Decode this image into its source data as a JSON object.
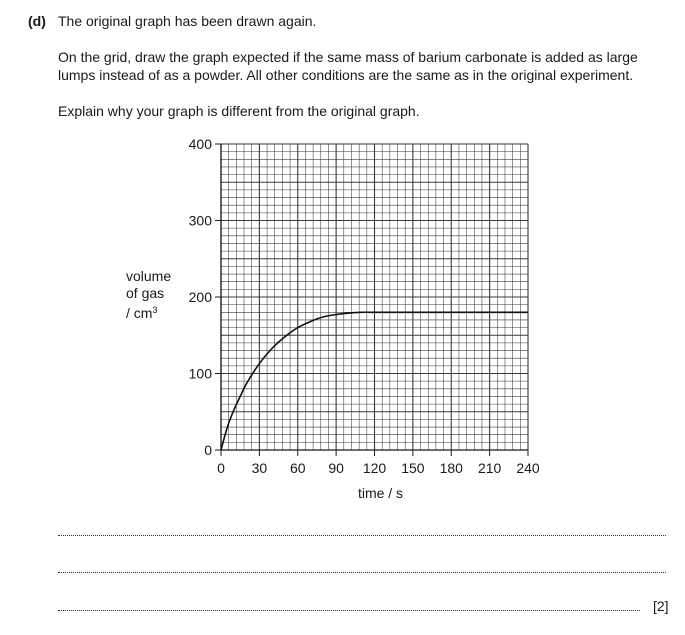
{
  "question": {
    "label": "(d)",
    "intro": "The original graph has been drawn again.",
    "instruction": "On the grid, draw the graph expected if the same mass of barium carbonate is added as large lumps instead of as a powder. All other conditions are the same as in the original experiment.",
    "explain": "Explain why your graph is different from the original graph.",
    "marks": "[2]"
  },
  "chart_data": {
    "type": "line",
    "xlabel": "time / s",
    "ylabel_lines": [
      "volume",
      "of gas",
      "/ cm"
    ],
    "ylabel_superscript": "3",
    "xlim": [
      0,
      240
    ],
    "ylim": [
      0,
      400
    ],
    "x_ticks": [
      0,
      30,
      60,
      90,
      120,
      150,
      180,
      210,
      240
    ],
    "y_ticks": [
      0,
      100,
      200,
      300,
      400
    ],
    "grid": true,
    "minor_grid_step_x": 6,
    "minor_grid_step_y": 10,
    "series": [
      {
        "x": [
          0,
          5,
          10,
          15,
          20,
          30,
          40,
          50,
          60,
          70,
          80,
          90,
          100,
          110,
          120,
          130,
          150,
          180,
          210,
          240
        ],
        "y": [
          0,
          30,
          52,
          70,
          87,
          113,
          133,
          148,
          160,
          168,
          174,
          177,
          179,
          180,
          180,
          180,
          180,
          180,
          180,
          180
        ]
      }
    ]
  }
}
